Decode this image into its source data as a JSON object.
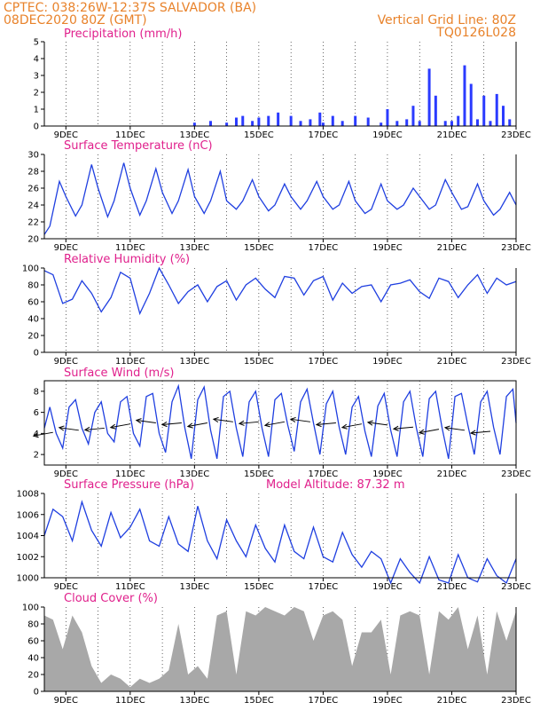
{
  "header": {
    "line1_left": "CPTEC:  038:26W-12:37S  SALVADOR (BA)",
    "line2_left": "08DEC2020 80Z (GMT)",
    "line1_right": "Vertical Grid Line: 80Z",
    "line2_right": "TQ0126L028"
  },
  "x_axis": {
    "tick_labels": [
      "9DEC",
      "11DEC",
      "13DEC",
      "15DEC",
      "17DEC",
      "19DEC",
      "21DEC",
      "23DEC"
    ],
    "start_day": 8.33,
    "end_day": 23.0
  },
  "colors": {
    "series": "#1f3fe0",
    "bars": "#2b3bff",
    "cloud": "#a8a8a8",
    "header": "#e8822a",
    "panel_title": "#e0208c"
  },
  "chart_data": [
    {
      "type": "bar",
      "title": "Precipitation (mm/h)",
      "ylim": [
        0,
        5
      ],
      "yticks": [
        "0",
        "1",
        "2",
        "3",
        "4",
        "5"
      ],
      "x": [
        13.0,
        13.5,
        14.0,
        14.3,
        14.5,
        14.8,
        15.0,
        15.3,
        15.6,
        16.0,
        16.3,
        16.6,
        16.9,
        17.0,
        17.3,
        17.6,
        18.0,
        18.4,
        18.8,
        19.0,
        19.3,
        19.6,
        19.8,
        20.0,
        20.3,
        20.5,
        20.8,
        21.0,
        21.2,
        21.4,
        21.6,
        21.8,
        22.0,
        22.2,
        22.4,
        22.6,
        22.8
      ],
      "values": [
        0.2,
        0.3,
        0.2,
        0.5,
        0.6,
        0.3,
        0.5,
        0.6,
        0.8,
        0.6,
        0.3,
        0.4,
        0.8,
        0.2,
        0.6,
        0.3,
        0.6,
        0.5,
        0.2,
        1.0,
        0.3,
        0.4,
        1.2,
        0.3,
        3.4,
        1.8,
        0.3,
        0.3,
        0.6,
        3.6,
        2.5,
        0.4,
        1.8,
        0.3,
        1.9,
        1.2,
        0.4
      ]
    },
    {
      "type": "line",
      "title": "Surface Temperature (nC)",
      "ylim": [
        20,
        30
      ],
      "yticks": [
        "20",
        "22",
        "24",
        "26",
        "28",
        "30"
      ],
      "x": [
        8.33,
        8.5,
        8.8,
        9.0,
        9.3,
        9.5,
        9.8,
        10.0,
        10.3,
        10.5,
        10.8,
        11.0,
        11.3,
        11.5,
        11.8,
        12.0,
        12.3,
        12.5,
        12.8,
        13.0,
        13.3,
        13.5,
        13.8,
        14.0,
        14.3,
        14.5,
        14.8,
        15.0,
        15.3,
        15.5,
        15.8,
        16.0,
        16.3,
        16.5,
        16.8,
        17.0,
        17.3,
        17.5,
        17.8,
        18.0,
        18.3,
        18.5,
        18.8,
        19.0,
        19.3,
        19.5,
        19.8,
        20.0,
        20.3,
        20.5,
        20.8,
        21.0,
        21.3,
        21.5,
        21.8,
        22.0,
        22.3,
        22.5,
        22.8,
        23.0
      ],
      "values": [
        20.5,
        21.5,
        26.8,
        25.0,
        22.7,
        24.0,
        28.8,
        26.0,
        22.6,
        24.5,
        29.0,
        26.0,
        22.8,
        24.5,
        28.3,
        25.5,
        23.0,
        24.5,
        28.2,
        25.0,
        23.0,
        24.5,
        28.0,
        24.5,
        23.5,
        24.5,
        27.0,
        25.0,
        23.3,
        24.0,
        26.5,
        25.0,
        23.5,
        24.5,
        26.8,
        25.0,
        23.5,
        24.0,
        26.8,
        24.5,
        23.0,
        23.5,
        26.5,
        24.5,
        23.5,
        24.0,
        26.0,
        25.0,
        23.5,
        24.0,
        27.0,
        25.5,
        23.5,
        23.8,
        26.5,
        24.5,
        22.8,
        23.5,
        25.5,
        24.0
      ]
    },
    {
      "type": "line",
      "title": "Relative Humidity (%)",
      "ylim": [
        0,
        100
      ],
      "yticks": [
        "0",
        "20",
        "40",
        "60",
        "80",
        "100"
      ],
      "x": [
        8.33,
        8.6,
        8.9,
        9.2,
        9.5,
        9.8,
        10.1,
        10.4,
        10.7,
        11.0,
        11.3,
        11.6,
        11.9,
        12.2,
        12.5,
        12.8,
        13.1,
        13.4,
        13.7,
        14.0,
        14.3,
        14.6,
        14.9,
        15.2,
        15.5,
        15.8,
        16.1,
        16.4,
        16.7,
        17.0,
        17.3,
        17.6,
        17.9,
        18.2,
        18.5,
        18.8,
        19.1,
        19.4,
        19.7,
        20.0,
        20.3,
        20.6,
        20.9,
        21.2,
        21.5,
        21.8,
        22.1,
        22.4,
        22.7,
        23.0
      ],
      "values": [
        97,
        92,
        58,
        63,
        85,
        70,
        48,
        65,
        95,
        88,
        46,
        70,
        100,
        80,
        58,
        72,
        80,
        60,
        78,
        85,
        62,
        80,
        88,
        75,
        65,
        90,
        88,
        68,
        85,
        90,
        62,
        82,
        70,
        78,
        80,
        60,
        80,
        82,
        86,
        72,
        64,
        88,
        84,
        65,
        80,
        92,
        70,
        88,
        80,
        84
      ]
    },
    {
      "type": "line",
      "title": "Surface Wind (m/s)",
      "ylim": [
        1,
        9
      ],
      "yticks": [
        "2",
        "4",
        "6",
        "8"
      ],
      "x": [
        8.33,
        8.5,
        8.7,
        8.9,
        9.1,
        9.3,
        9.5,
        9.7,
        9.9,
        10.1,
        10.3,
        10.5,
        10.7,
        10.9,
        11.1,
        11.3,
        11.5,
        11.7,
        11.9,
        12.1,
        12.3,
        12.5,
        12.7,
        12.9,
        13.1,
        13.3,
        13.5,
        13.7,
        13.9,
        14.1,
        14.3,
        14.5,
        14.7,
        14.9,
        15.1,
        15.3,
        15.5,
        15.7,
        15.9,
        16.1,
        16.3,
        16.5,
        16.7,
        16.9,
        17.1,
        17.3,
        17.5,
        17.7,
        17.9,
        18.1,
        18.3,
        18.5,
        18.7,
        18.9,
        19.1,
        19.3,
        19.5,
        19.7,
        19.9,
        20.1,
        20.3,
        20.5,
        20.7,
        20.9,
        21.1,
        21.3,
        21.5,
        21.7,
        21.9,
        22.1,
        22.3,
        22.5,
        22.7,
        22.9,
        23.0
      ],
      "values": [
        4.5,
        6.5,
        4.0,
        2.6,
        6.5,
        7.2,
        4.5,
        3.0,
        6.0,
        7.0,
        4.0,
        3.2,
        7.0,
        7.5,
        4.0,
        2.8,
        7.5,
        7.8,
        4.0,
        2.2,
        7.0,
        8.5,
        4.5,
        1.6,
        7.2,
        8.4,
        4.3,
        1.6,
        7.5,
        8.0,
        4.5,
        1.8,
        7.0,
        8.0,
        4.5,
        1.8,
        7.2,
        7.8,
        4.8,
        2.3,
        7.0,
        8.2,
        5.0,
        2.0,
        6.8,
        8.0,
        4.6,
        2.0,
        6.5,
        7.5,
        4.2,
        1.8,
        6.6,
        7.8,
        4.3,
        1.8,
        7.0,
        8.0,
        4.5,
        1.8,
        7.3,
        8.0,
        4.5,
        1.6,
        7.5,
        7.8,
        4.8,
        2.0,
        7.0,
        8.0,
        4.6,
        2.0,
        7.5,
        8.2,
        5.0
      ],
      "arrows_x": [
        8.6,
        9.4,
        10.2,
        11.0,
        11.8,
        12.6,
        13.4,
        14.2,
        15.0,
        15.8,
        16.6,
        17.4,
        18.2,
        19.0,
        19.8,
        20.6,
        21.4,
        22.2
      ],
      "arrows_y": [
        4.1,
        4.3,
        4.5,
        4.9,
        5.0,
        5.0,
        5.0,
        5.1,
        5.1,
        5.1,
        5.1,
        5.0,
        4.9,
        4.8,
        4.6,
        4.4,
        4.3,
        4.2
      ]
    },
    {
      "type": "line",
      "title": "Surface Pressure (hPa)",
      "annotation": "Model Altitude: 87.32 m",
      "ylim": [
        1000,
        1008
      ],
      "yticks": [
        "1000",
        "1002",
        "1004",
        "1006",
        "1008"
      ],
      "x": [
        8.33,
        8.6,
        8.9,
        9.2,
        9.5,
        9.8,
        10.1,
        10.4,
        10.7,
        11.0,
        11.3,
        11.6,
        11.9,
        12.2,
        12.5,
        12.8,
        13.1,
        13.4,
        13.7,
        14.0,
        14.3,
        14.6,
        14.9,
        15.2,
        15.5,
        15.8,
        16.1,
        16.4,
        16.7,
        17.0,
        17.3,
        17.6,
        17.9,
        18.2,
        18.5,
        18.8,
        19.1,
        19.4,
        19.7,
        20.0,
        20.3,
        20.6,
        20.9,
        21.2,
        21.5,
        21.8,
        22.1,
        22.4,
        22.7,
        23.0
      ],
      "values": [
        1004.0,
        1006.5,
        1005.8,
        1003.5,
        1007.2,
        1004.5,
        1003.0,
        1006.2,
        1003.8,
        1004.8,
        1006.5,
        1003.5,
        1003.0,
        1005.8,
        1003.2,
        1002.5,
        1006.8,
        1003.5,
        1001.8,
        1005.5,
        1003.5,
        1002.0,
        1005.0,
        1002.8,
        1001.5,
        1005.0,
        1002.5,
        1001.8,
        1004.8,
        1002.0,
        1001.5,
        1004.3,
        1002.2,
        1001.0,
        1002.5,
        1001.8,
        999.5,
        1001.8,
        1000.5,
        999.5,
        1002.0,
        999.8,
        999.5,
        1002.2,
        1000.0,
        999.6,
        1001.8,
        1000.2,
        999.5,
        1001.8
      ]
    },
    {
      "type": "area",
      "title": "Cloud Cover (%)",
      "ylim": [
        0,
        100
      ],
      "yticks": [
        "0",
        "20",
        "40",
        "60",
        "80",
        "100"
      ],
      "x": [
        8.33,
        8.6,
        8.9,
        9.2,
        9.5,
        9.8,
        10.1,
        10.4,
        10.7,
        11.0,
        11.3,
        11.6,
        11.9,
        12.2,
        12.5,
        12.8,
        13.1,
        13.4,
        13.7,
        14.0,
        14.3,
        14.6,
        14.9,
        15.2,
        15.5,
        15.8,
        16.1,
        16.4,
        16.7,
        17.0,
        17.3,
        17.6,
        17.9,
        18.2,
        18.5,
        18.8,
        19.1,
        19.4,
        19.7,
        20.0,
        20.3,
        20.6,
        20.9,
        21.2,
        21.5,
        21.8,
        22.1,
        22.4,
        22.7,
        23.0
      ],
      "values": [
        90,
        85,
        50,
        90,
        70,
        30,
        10,
        20,
        15,
        5,
        15,
        10,
        15,
        25,
        80,
        20,
        30,
        15,
        90,
        95,
        20,
        95,
        90,
        100,
        95,
        90,
        100,
        95,
        60,
        90,
        95,
        85,
        30,
        70,
        70,
        85,
        20,
        90,
        95,
        90,
        20,
        95,
        85,
        100,
        50,
        90,
        20,
        95,
        60,
        95
      ]
    }
  ]
}
